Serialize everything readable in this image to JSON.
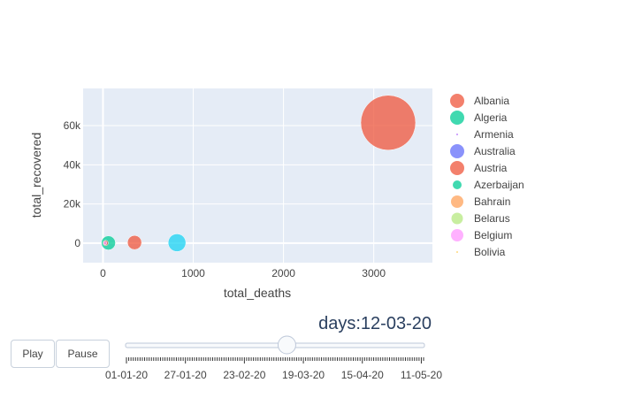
{
  "chart_data": {
    "type": "scatter",
    "xlabel": "total_deaths",
    "ylabel": "total_recovered",
    "xlim": [
      -220,
      3650
    ],
    "ylim": [
      -10000,
      79000
    ],
    "x_ticks": [
      0,
      1000,
      2000,
      3000
    ],
    "x_tick_labels": [
      "0",
      "1000",
      "2000",
      "3000"
    ],
    "y_ticks": [
      0,
      20000,
      40000,
      60000
    ],
    "y_tick_labels": [
      "0",
      "20k",
      "40k",
      "60k"
    ],
    "grid": true,
    "legend_position": "right",
    "series": [
      {
        "name": "Albania",
        "color": "#ef553b",
        "x": 350,
        "y": 300,
        "marker_size": 16
      },
      {
        "name": "Algeria",
        "color": "#00cc96",
        "x": 60,
        "y": 100,
        "marker_size": 16
      },
      {
        "name": "Armenia",
        "color": "#ab63fa",
        "x": 40,
        "y": 0,
        "marker_size": 2
      },
      {
        "name": "Australia",
        "color": "#636efa",
        "x": 820,
        "y": 200,
        "marker_size": 16
      },
      {
        "name": "Austria",
        "color": "#ef553b",
        "x": 3160,
        "y": 61500,
        "marker_size": 16
      },
      {
        "name": "Azerbaijan",
        "color": "#00cc96",
        "x": 30,
        "y": 50,
        "marker_size": 10
      },
      {
        "name": "Bahrain",
        "color": "#ffa15a",
        "x": 20,
        "y": 30,
        "marker_size": 14
      },
      {
        "name": "Belarus",
        "color": "#b6e880",
        "x": 15,
        "y": 20,
        "marker_size": 13
      },
      {
        "name": "Belgium",
        "color": "#ff97ff",
        "x": 25,
        "y": 40,
        "marker_size": 14
      },
      {
        "name": "Bolivia",
        "color": "#fecb52",
        "x": 10,
        "y": 10,
        "marker_size": 2
      }
    ]
  },
  "plot_points": [
    {
      "x": 3160,
      "y": 61500,
      "r": 31,
      "color": "#ef553b"
    },
    {
      "x": 820,
      "y": 200,
      "r": 10,
      "color": "#19d3f3"
    },
    {
      "x": 350,
      "y": 300,
      "r": 8,
      "color": "#ef553b"
    },
    {
      "x": 60,
      "y": 100,
      "r": 8,
      "color": "#00cc96"
    },
    {
      "x": 30,
      "y": 50,
      "r": 3,
      "color": "#ef553b"
    },
    {
      "x": 25,
      "y": 40,
      "r": 2,
      "color": "#ff97ff"
    }
  ],
  "animation": {
    "current_label": "days:12-03-20",
    "play_label": "Play",
    "pause_label": "Pause",
    "slider_position": 0.54,
    "slider_tick_count": 132,
    "slider_date_labels": [
      "01-01-20",
      "27-01-20",
      "23-02-20",
      "19-03-20",
      "15-04-20",
      "11-05-20"
    ]
  }
}
